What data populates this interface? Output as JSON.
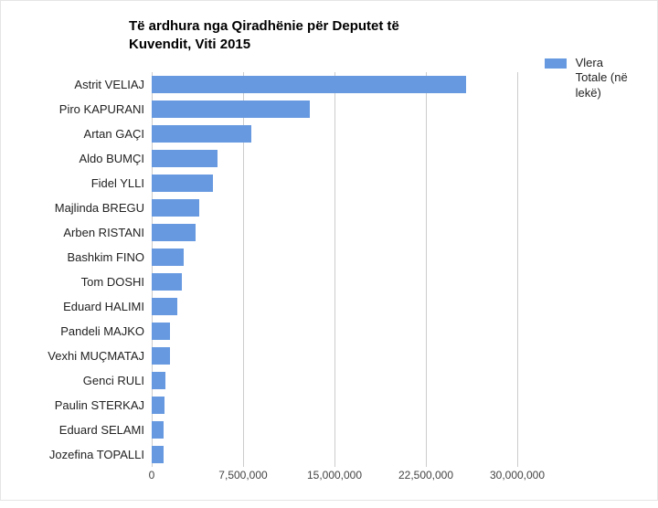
{
  "chart": {
    "type": "bar-horizontal",
    "title": "Të ardhura nga Qiradhënie për Deputet të Kuvendit, Viti 2015",
    "title_fontsize": 15,
    "title_fontweight": "bold",
    "background_color": "#ffffff",
    "bar_color": "#6699e0",
    "grid_color": "#cccccc",
    "label_fontsize": 13,
    "tick_fontsize": 12,
    "xlim": [
      0,
      30000000
    ],
    "xtick_step": 7500000,
    "xtick_labels": [
      "0",
      "7,500,000",
      "15,000,000",
      "22,500,000",
      "30,000,000"
    ],
    "legend": {
      "label": "Vlera Totale (në lekë)",
      "color": "#6699e0",
      "position": "top-right"
    },
    "items": [
      {
        "name": "Astrit VELIAJ",
        "value": 25800000
      },
      {
        "name": "Piro KAPURANI",
        "value": 13000000
      },
      {
        "name": "Artan GAÇI",
        "value": 8200000
      },
      {
        "name": "Aldo BUMÇI",
        "value": 5400000
      },
      {
        "name": "Fidel YLLI",
        "value": 5000000
      },
      {
        "name": "Majlinda BREGU",
        "value": 3900000
      },
      {
        "name": "Arben RISTANI",
        "value": 3600000
      },
      {
        "name": "Bashkim FINO",
        "value": 2600000
      },
      {
        "name": "Tom DOSHI",
        "value": 2500000
      },
      {
        "name": "Eduard HALIMI",
        "value": 2100000
      },
      {
        "name": "Pandeli MAJKO",
        "value": 1500000
      },
      {
        "name": "Vexhi MUÇMATAJ",
        "value": 1500000
      },
      {
        "name": "Genci RULI",
        "value": 1150000
      },
      {
        "name": "Paulin STERKAJ",
        "value": 1050000
      },
      {
        "name": "Eduard SELAMI",
        "value": 1000000
      },
      {
        "name": "Jozefina TOPALLI",
        "value": 950000
      }
    ]
  }
}
